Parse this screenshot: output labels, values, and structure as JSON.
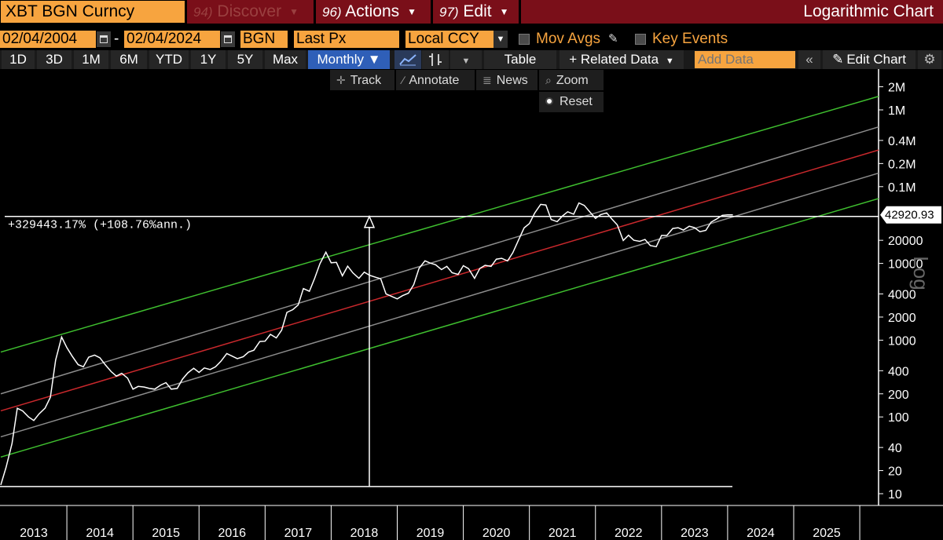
{
  "header": {
    "ticker": "XBT BGN Curncy",
    "discover": {
      "num": "94)",
      "label": "Discover"
    },
    "actions": {
      "num": "96)",
      "label": "Actions"
    },
    "edit": {
      "num": "97)",
      "label": "Edit"
    },
    "chart_title": "Logarithmic Chart"
  },
  "controls": {
    "start_date": "02/04/2004",
    "end_date": "02/04/2024",
    "source": "BGN",
    "field": "Last Px",
    "currency": "Local CCY",
    "mov_avgs": "Mov Avgs",
    "key_events": "Key Events"
  },
  "ranges": [
    "1D",
    "3D",
    "1M",
    "6M",
    "YTD",
    "1Y",
    "5Y",
    "Max"
  ],
  "frequency": "Monthly ▼",
  "toolbar": {
    "table": "Table",
    "related": "+ Related Data",
    "add_placeholder": "Add Data",
    "edit_chart": "Edit Chart"
  },
  "tools": {
    "track": "Track",
    "annotate": "Annotate",
    "news": "News",
    "zoom": "Zoom",
    "reset": "Reset"
  },
  "colors": {
    "orange": "#f7a43f",
    "maroon": "#7a0f19",
    "band_outer": "#3fbf2f",
    "band_mid": "#8c8c8c",
    "band_center": "#c8282c",
    "price": "#ffffff"
  },
  "chart_data": {
    "type": "line",
    "title": "Logarithmic Chart",
    "scale": "log",
    "ylabel": "Log",
    "y_ticks": [
      {
        "v": 2000000,
        "label": "2M"
      },
      {
        "v": 1000000,
        "label": "1M"
      },
      {
        "v": 400000,
        "label": "0.4M"
      },
      {
        "v": 200000,
        "label": "0.2M"
      },
      {
        "v": 100000,
        "label": "0.1M"
      },
      {
        "v": 20000,
        "label": "20000"
      },
      {
        "v": 10000,
        "label": "10000"
      },
      {
        "v": 4000,
        "label": "4000"
      },
      {
        "v": 2000,
        "label": "2000"
      },
      {
        "v": 1000,
        "label": "1000"
      },
      {
        "v": 400,
        "label": "400"
      },
      {
        "v": 200,
        "label": "200"
      },
      {
        "v": 100,
        "label": "100"
      },
      {
        "v": 40,
        "label": "40"
      },
      {
        "v": 20,
        "label": "20"
      },
      {
        "v": 10,
        "label": "10"
      }
    ],
    "x_labels": [
      "2013",
      "2014",
      "2015",
      "2016",
      "2017",
      "2018",
      "2019",
      "2020",
      "2021",
      "2022",
      "2023",
      "2024",
      "2025"
    ],
    "last_value_label": "42920.93",
    "annotation": "+329443.17% (+108.76%ann.)",
    "bands": [
      {
        "name": "upper-green",
        "start": 700,
        "end": 1500000,
        "color": "#3fbf2f"
      },
      {
        "name": "upper-gray",
        "start": 200,
        "end": 600000,
        "color": "#8c8c8c"
      },
      {
        "name": "center-red",
        "start": 120,
        "end": 300000,
        "color": "#c8282c"
      },
      {
        "name": "lower-gray",
        "start": 55,
        "end": 150000,
        "color": "#8c8c8c"
      },
      {
        "name": "lower-green",
        "start": 30,
        "end": 70000,
        "color": "#3fbf2f"
      }
    ],
    "price": [
      [
        2013.0,
        13
      ],
      [
        2013.08,
        22
      ],
      [
        2013.17,
        45
      ],
      [
        2013.25,
        130
      ],
      [
        2013.33,
        120
      ],
      [
        2013.42,
        100
      ],
      [
        2013.5,
        90
      ],
      [
        2013.58,
        110
      ],
      [
        2013.67,
        130
      ],
      [
        2013.75,
        180
      ],
      [
        2013.83,
        550
      ],
      [
        2013.92,
        1100
      ],
      [
        2014.0,
        800
      ],
      [
        2014.08,
        620
      ],
      [
        2014.17,
        480
      ],
      [
        2014.25,
        450
      ],
      [
        2014.33,
        600
      ],
      [
        2014.42,
        640
      ],
      [
        2014.5,
        590
      ],
      [
        2014.58,
        480
      ],
      [
        2014.67,
        390
      ],
      [
        2014.75,
        340
      ],
      [
        2014.83,
        370
      ],
      [
        2014.92,
        320
      ],
      [
        2015.0,
        230
      ],
      [
        2015.08,
        250
      ],
      [
        2015.17,
        245
      ],
      [
        2015.25,
        235
      ],
      [
        2015.33,
        230
      ],
      [
        2015.42,
        260
      ],
      [
        2015.5,
        280
      ],
      [
        2015.58,
        230
      ],
      [
        2015.67,
        235
      ],
      [
        2015.75,
        310
      ],
      [
        2015.83,
        375
      ],
      [
        2015.92,
        430
      ],
      [
        2016.0,
        380
      ],
      [
        2016.08,
        435
      ],
      [
        2016.17,
        415
      ],
      [
        2016.25,
        450
      ],
      [
        2016.33,
        530
      ],
      [
        2016.42,
        670
      ],
      [
        2016.5,
        620
      ],
      [
        2016.58,
        575
      ],
      [
        2016.67,
        610
      ],
      [
        2016.75,
        700
      ],
      [
        2016.83,
        740
      ],
      [
        2016.92,
        960
      ],
      [
        2017.0,
        970
      ],
      [
        2017.08,
        1190
      ],
      [
        2017.17,
        1070
      ],
      [
        2017.25,
        1350
      ],
      [
        2017.33,
        2300
      ],
      [
        2017.42,
        2500
      ],
      [
        2017.5,
        2870
      ],
      [
        2017.58,
        4700
      ],
      [
        2017.67,
        4340
      ],
      [
        2017.75,
        6400
      ],
      [
        2017.83,
        9900
      ],
      [
        2017.92,
        14000
      ],
      [
        2018.0,
        10200
      ],
      [
        2018.08,
        10300
      ],
      [
        2018.17,
        6900
      ],
      [
        2018.25,
        9200
      ],
      [
        2018.33,
        7500
      ],
      [
        2018.42,
        6400
      ],
      [
        2018.5,
        7700
      ],
      [
        2018.58,
        7000
      ],
      [
        2018.67,
        6600
      ],
      [
        2018.75,
        6300
      ],
      [
        2018.83,
        4000
      ],
      [
        2018.92,
        3700
      ],
      [
        2019.0,
        3450
      ],
      [
        2019.08,
        3800
      ],
      [
        2019.17,
        4100
      ],
      [
        2019.25,
        5300
      ],
      [
        2019.33,
        8600
      ],
      [
        2019.42,
        10800
      ],
      [
        2019.5,
        10100
      ],
      [
        2019.58,
        9600
      ],
      [
        2019.67,
        8300
      ],
      [
        2019.75,
        9150
      ],
      [
        2019.83,
        7550
      ],
      [
        2019.92,
        7200
      ],
      [
        2020.0,
        9350
      ],
      [
        2020.08,
        8550
      ],
      [
        2020.17,
        6400
      ],
      [
        2020.25,
        8600
      ],
      [
        2020.33,
        9450
      ],
      [
        2020.42,
        9150
      ],
      [
        2020.5,
        11350
      ],
      [
        2020.58,
        11650
      ],
      [
        2020.67,
        10780
      ],
      [
        2020.75,
        13800
      ],
      [
        2020.83,
        19700
      ],
      [
        2020.92,
        29000
      ],
      [
        2021.0,
        33100
      ],
      [
        2021.08,
        45200
      ],
      [
        2021.17,
        58800
      ],
      [
        2021.25,
        57700
      ],
      [
        2021.33,
        37300
      ],
      [
        2021.42,
        35000
      ],
      [
        2021.5,
        41500
      ],
      [
        2021.58,
        47100
      ],
      [
        2021.67,
        43800
      ],
      [
        2021.75,
        61300
      ],
      [
        2021.83,
        57000
      ],
      [
        2021.92,
        46300
      ],
      [
        2022.0,
        38500
      ],
      [
        2022.08,
        43200
      ],
      [
        2022.17,
        45500
      ],
      [
        2022.25,
        37700
      ],
      [
        2022.33,
        31800
      ],
      [
        2022.42,
        19900
      ],
      [
        2022.5,
        23300
      ],
      [
        2022.58,
        20050
      ],
      [
        2022.67,
        19400
      ],
      [
        2022.75,
        20500
      ],
      [
        2022.83,
        17100
      ],
      [
        2022.92,
        16500
      ],
      [
        2023.0,
        23100
      ],
      [
        2023.08,
        23100
      ],
      [
        2023.17,
        28500
      ],
      [
        2023.25,
        29200
      ],
      [
        2023.33,
        27200
      ],
      [
        2023.42,
        30500
      ],
      [
        2023.5,
        29200
      ],
      [
        2023.58,
        25900
      ],
      [
        2023.67,
        26960
      ],
      [
        2023.75,
        34500
      ],
      [
        2023.83,
        37700
      ],
      [
        2023.92,
        42300
      ],
      [
        2024.0,
        42900
      ],
      [
        2024.08,
        42920
      ]
    ]
  }
}
